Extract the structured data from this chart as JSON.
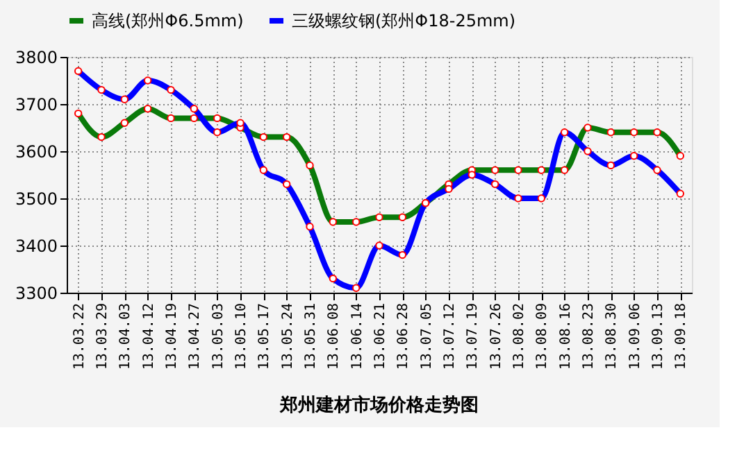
{
  "chart_data": {
    "type": "line",
    "title": "郑州建材市场价格走势图",
    "legend": "top",
    "grid": true,
    "marker": "circle",
    "line_style": "solid",
    "categories": [
      "13.03.22",
      "13.03.29",
      "13.04.03",
      "13.04.12",
      "13.04.19",
      "13.04.27",
      "13.05.03",
      "13.05.10",
      "13.05.17",
      "13.05.24",
      "13.05.31",
      "13.06.08",
      "13.06.14",
      "13.06.21",
      "13.06.28",
      "13.07.05",
      "13.07.12",
      "13.07.19",
      "13.07.26",
      "13.08.02",
      "13.08.09",
      "13.08.16",
      "13.08.23",
      "13.08.30",
      "13.09.06",
      "13.09.13",
      "13.09.18"
    ],
    "ylim": [
      3300,
      3800
    ],
    "yticks": [
      3300,
      3400,
      3500,
      3600,
      3700,
      3800
    ],
    "series": [
      {
        "name": "高线(郑州Φ6.5mm)",
        "color": "#0a7a0a",
        "values": [
          3680,
          3630,
          3660,
          3690,
          3670,
          3670,
          3670,
          3650,
          3630,
          3630,
          3570,
          3450,
          3450,
          3460,
          3460,
          3490,
          3530,
          3560,
          3560,
          3560,
          3560,
          3560,
          3650,
          3640,
          3640,
          3640,
          3590
        ]
      },
      {
        "name": "三级螺纹钢(郑州Φ18-25mm)",
        "color": "#0000ff",
        "values": [
          3770,
          3730,
          3710,
          3750,
          3730,
          3690,
          3640,
          3660,
          3560,
          3530,
          3440,
          3330,
          3310,
          3400,
          3380,
          3490,
          3520,
          3550,
          3530,
          3500,
          3500,
          3640,
          3600,
          3570,
          3590,
          3560,
          3510
        ]
      }
    ]
  }
}
